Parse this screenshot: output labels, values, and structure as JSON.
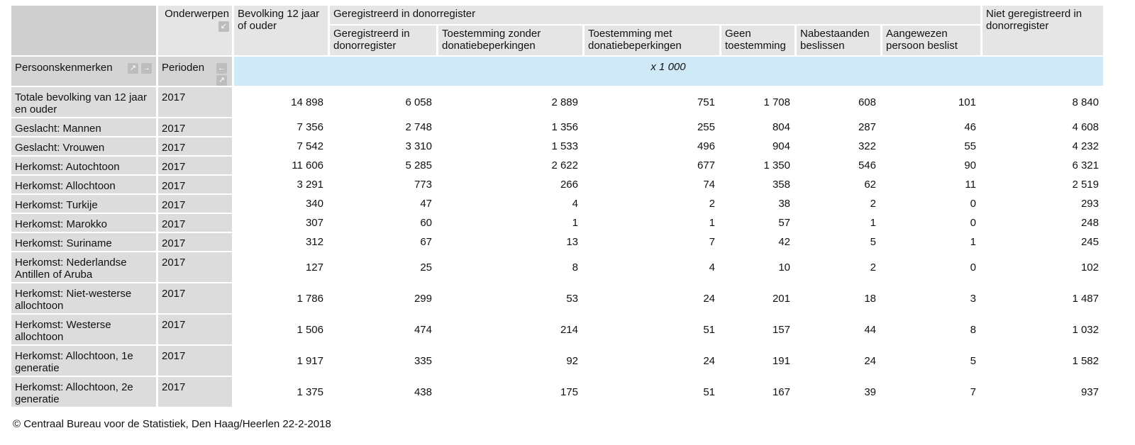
{
  "header": {
    "onderwerpen": "Onderwerpen",
    "col_bevolking": "Bevolking 12 jaar of ouder",
    "group_geregistreerd": "Geregistreerd in donorregister",
    "col_niet": "Niet geregistreerd in donorregister",
    "subcols": [
      "Geregistreerd in donorregister",
      "Toestemming zonder donatiebeperkingen",
      "Toestemming met donatiebeperkingen",
      "Geen toestemming",
      "Nabestaanden beslissen",
      "Aangewezen persoon beslist"
    ],
    "persoonskenmerken": "Persoonskenmerken",
    "perioden": "Perioden",
    "unit": "x 1 000"
  },
  "icons": {
    "collapse": "arrow-down-left-icon",
    "expand": "arrow-up-right-icon",
    "move_right": "arrow-right-icon",
    "move_left": "arrow-left-icon"
  },
  "rows": [
    {
      "label": "Totale bevolking van 12 jaar en ouder",
      "period": "2017",
      "values": [
        "14 898",
        "6 058",
        "2 889",
        "751",
        "1 708",
        "608",
        "101",
        "8 840"
      ]
    },
    {
      "label": "Geslacht: Mannen",
      "period": "2017",
      "values": [
        "7 356",
        "2 748",
        "1 356",
        "255",
        "804",
        "287",
        "46",
        "4 608"
      ]
    },
    {
      "label": "Geslacht: Vrouwen",
      "period": "2017",
      "values": [
        "7 542",
        "3 310",
        "1 533",
        "496",
        "904",
        "322",
        "55",
        "4 232"
      ]
    },
    {
      "label": "Herkomst: Autochtoon",
      "period": "2017",
      "values": [
        "11 606",
        "5 285",
        "2 622",
        "677",
        "1 350",
        "546",
        "90",
        "6 321"
      ]
    },
    {
      "label": "Herkomst: Allochtoon",
      "period": "2017",
      "values": [
        "3 291",
        "773",
        "266",
        "74",
        "358",
        "62",
        "11",
        "2 519"
      ]
    },
    {
      "label": "Herkomst: Turkije",
      "period": "2017",
      "values": [
        "340",
        "47",
        "4",
        "2",
        "38",
        "2",
        "0",
        "293"
      ]
    },
    {
      "label": "Herkomst: Marokko",
      "period": "2017",
      "values": [
        "307",
        "60",
        "1",
        "1",
        "57",
        "1",
        "0",
        "248"
      ]
    },
    {
      "label": "Herkomst: Suriname",
      "period": "2017",
      "values": [
        "312",
        "67",
        "13",
        "7",
        "42",
        "5",
        "1",
        "245"
      ]
    },
    {
      "label": "Herkomst: Nederlandse Antillen of Aruba",
      "period": "2017",
      "values": [
        "127",
        "25",
        "8",
        "4",
        "10",
        "2",
        "0",
        "102"
      ]
    },
    {
      "label": "Herkomst: Niet-westerse allochtoon",
      "period": "2017",
      "values": [
        "1 786",
        "299",
        "53",
        "24",
        "201",
        "18",
        "3",
        "1 487"
      ]
    },
    {
      "label": "Herkomst: Westerse allochtoon",
      "period": "2017",
      "values": [
        "1 506",
        "474",
        "214",
        "51",
        "157",
        "44",
        "8",
        "1 032"
      ]
    },
    {
      "label": "Herkomst: Allochtoon, 1e generatie",
      "period": "2017",
      "values": [
        "1 917",
        "335",
        "92",
        "24",
        "191",
        "24",
        "5",
        "1 582"
      ]
    },
    {
      "label": "Herkomst: Allochtoon, 2e generatie",
      "period": "2017",
      "values": [
        "1 375",
        "438",
        "175",
        "51",
        "167",
        "39",
        "7",
        "937"
      ]
    }
  ],
  "footer": "© Centraal Bureau voor de Statistiek, Den Haag/Heerlen 22-2-2018"
}
